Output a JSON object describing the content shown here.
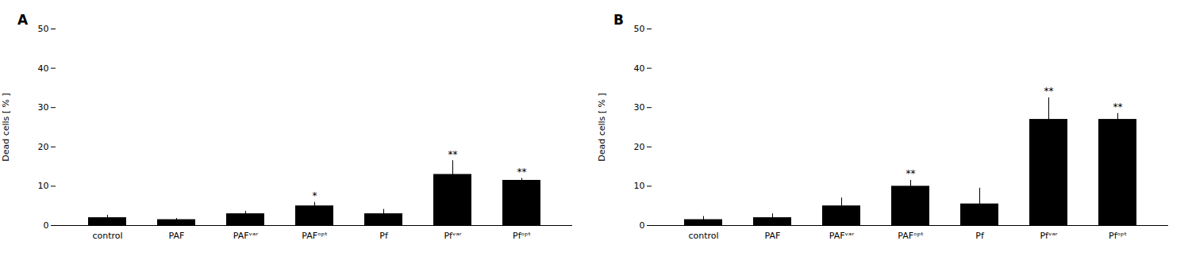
{
  "chart_data": [
    {
      "type": "bar",
      "title": "A",
      "categories": [
        "control",
        "PAF",
        "PAFᵛᵃʳ",
        "PAFᵒᵖᵗ",
        "Pf",
        "Pfᵛᵃʳ",
        "Pfᵒᵖᵗ"
      ],
      "values": [
        2.0,
        1.5,
        3.0,
        5.0,
        3.0,
        13.0,
        11.5
      ],
      "errors": [
        0.6,
        0.3,
        0.6,
        0.9,
        1.1,
        3.5,
        0.5
      ],
      "annotations": [
        null,
        null,
        null,
        "*",
        null,
        "**",
        "**"
      ],
      "ylabel": "Dead cells [ % ]",
      "ylim": [
        0,
        50
      ],
      "yticks": [
        0,
        10,
        20,
        30,
        40,
        50
      ],
      "color": "#000000",
      "grid": false
    },
    {
      "type": "bar",
      "title": "B",
      "categories": [
        "control",
        "PAF",
        "PAFᵛᵃʳ",
        "PAFᵒᵖᵗ",
        "Pf",
        "Pfᵛᵃʳ",
        "Pfᵒᵖᵗ"
      ],
      "values": [
        1.5,
        2.0,
        5.0,
        10.0,
        5.5,
        27.0,
        27.0
      ],
      "errors": [
        0.8,
        1.0,
        2.0,
        1.5,
        4.0,
        5.5,
        1.5
      ],
      "annotations": [
        null,
        null,
        null,
        "**",
        null,
        "**",
        "**"
      ],
      "ylabel": "Dead cells [ % ]",
      "ylim": [
        0,
        50
      ],
      "yticks": [
        0,
        10,
        20,
        30,
        40,
        50
      ],
      "color": "#000000",
      "grid": false
    }
  ]
}
